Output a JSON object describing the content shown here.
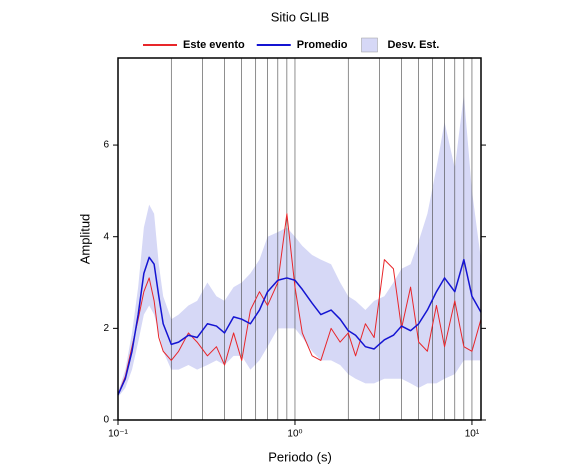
{
  "chart_data": {
    "type": "line",
    "title": "Sitio GLIB",
    "xlabel": "Periodo (s)",
    "ylabel": "Amplitud",
    "log_x": true,
    "grid": true,
    "legend": "top",
    "xlim": [
      0.1,
      11.25
    ],
    "xticks": [
      {
        "value": 0.1,
        "label": "10⁻¹"
      },
      {
        "value": 1,
        "label": "10⁰"
      },
      {
        "value": 10,
        "label": "10¹"
      }
    ],
    "ylim": [
      0,
      7.9
    ],
    "yticks": [
      0,
      2,
      4,
      6
    ],
    "x": [
      0.1,
      0.11,
      0.12,
      0.13,
      0.14,
      0.15,
      0.16,
      0.17,
      0.18,
      0.2,
      0.22,
      0.25,
      0.28,
      0.32,
      0.36,
      0.4,
      0.45,
      0.5,
      0.56,
      0.63,
      0.7,
      0.8,
      0.9,
      1.0,
      1.1,
      1.25,
      1.4,
      1.6,
      1.8,
      2.0,
      2.2,
      2.5,
      2.8,
      3.2,
      3.6,
      4.0,
      4.5,
      5.0,
      5.6,
      6.3,
      7.0,
      8.0,
      9.0,
      10.0,
      11.25
    ],
    "series": [
      {
        "name": "Este evento",
        "color": "#e8262a",
        "values": [
          0.55,
          0.95,
          1.6,
          2.2,
          2.8,
          3.1,
          2.6,
          1.8,
          1.5,
          1.3,
          1.5,
          1.9,
          1.7,
          1.4,
          1.6,
          1.2,
          1.9,
          1.3,
          2.4,
          2.8,
          2.5,
          3.0,
          4.5,
          2.9,
          1.9,
          1.4,
          1.3,
          2.0,
          1.7,
          1.9,
          1.4,
          2.1,
          1.8,
          3.5,
          3.3,
          2.0,
          2.9,
          1.7,
          1.5,
          2.5,
          1.6,
          2.6,
          1.6,
          1.5,
          2.2
        ]
      },
      {
        "name": "Promedio",
        "color": "#1414d2",
        "values": [
          0.55,
          0.9,
          1.5,
          2.3,
          3.2,
          3.55,
          3.4,
          2.7,
          2.1,
          1.65,
          1.7,
          1.85,
          1.8,
          2.1,
          2.05,
          1.9,
          2.25,
          2.2,
          2.1,
          2.4,
          2.8,
          3.05,
          3.1,
          3.05,
          2.85,
          2.55,
          2.3,
          2.4,
          2.2,
          1.95,
          1.85,
          1.6,
          1.55,
          1.75,
          1.85,
          2.05,
          1.95,
          2.1,
          2.4,
          2.8,
          3.1,
          2.8,
          3.5,
          2.7,
          2.35
        ]
      }
    ],
    "band": {
      "name": "Desv. Est.",
      "color": "#d6d8f6",
      "upper": [
        0.6,
        1.1,
        1.9,
        2.9,
        4.2,
        4.7,
        4.5,
        3.4,
        2.7,
        2.2,
        2.3,
        2.5,
        2.6,
        3.0,
        2.7,
        2.6,
        2.9,
        3.0,
        3.2,
        3.5,
        4.0,
        4.1,
        4.2,
        4.0,
        3.8,
        3.6,
        3.5,
        3.4,
        3.0,
        2.7,
        2.6,
        2.4,
        2.6,
        2.7,
        3.0,
        3.3,
        3.4,
        3.9,
        4.5,
        5.5,
        6.5,
        5.5,
        7.1,
        5.0,
        3.5
      ],
      "lower": [
        0.5,
        0.7,
        1.1,
        1.7,
        2.3,
        2.5,
        2.3,
        1.9,
        1.5,
        1.1,
        1.1,
        1.2,
        1.1,
        1.2,
        1.3,
        1.2,
        1.4,
        1.4,
        1.1,
        1.3,
        1.6,
        2.0,
        2.0,
        2.0,
        1.8,
        1.5,
        1.3,
        1.3,
        1.2,
        1.0,
        0.9,
        0.8,
        0.8,
        0.9,
        0.9,
        0.9,
        0.8,
        0.7,
        0.8,
        0.8,
        0.9,
        1.0,
        1.3,
        1.3,
        1.3
      ]
    }
  }
}
